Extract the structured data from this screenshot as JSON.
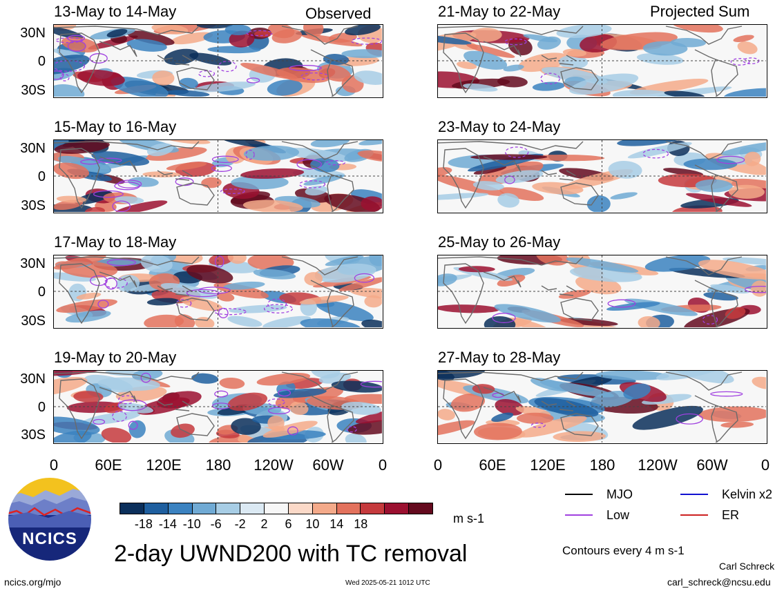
{
  "header": {
    "left_label": "Observed",
    "right_label": "Projected Sum"
  },
  "panels_left": [
    {
      "title": "13-May to 14-May"
    },
    {
      "title": "15-May to 16-May"
    },
    {
      "title": "17-May to 18-May"
    },
    {
      "title": "19-May to 20-May"
    }
  ],
  "panels_right": [
    {
      "title": "21-May to 22-May"
    },
    {
      "title": "23-May to 24-May"
    },
    {
      "title": "25-May to 26-May"
    },
    {
      "title": "27-May to 28-May"
    }
  ],
  "lat_labels": [
    "30N",
    "0",
    "30S"
  ],
  "lon_labels": [
    "0",
    "60E",
    "120E",
    "180",
    "120W",
    "60W",
    "0"
  ],
  "colorbar": {
    "ticks": [
      "-18",
      "-14",
      "-10",
      "-6",
      "-2",
      "2",
      "6",
      "10",
      "14",
      "18"
    ],
    "colors": [
      "#0b2f5b",
      "#1f5f9f",
      "#3b82c0",
      "#70aad4",
      "#a7cde5",
      "#dbe9f3",
      "#f7f7f7",
      "#fbd9c8",
      "#f4aa8a",
      "#e3725d",
      "#c53a3d",
      "#9b1030",
      "#640a1e"
    ],
    "units": "m s-1"
  },
  "legend": {
    "items": [
      {
        "label": "MJO",
        "color": "#000000"
      },
      {
        "label": "Kelvin x2",
        "color": "#1010d0"
      },
      {
        "label": "Low",
        "color": "#a040e0"
      },
      {
        "label": "ER",
        "color": "#cc2020"
      }
    ],
    "contours": "Contours every 4 m s-1"
  },
  "footer": {
    "logo_text": "NCICS",
    "main_title": "2-day UWND200 with TC removal",
    "url": "ncics.org/mjo",
    "timestamp": "Wed 2025-05-21 1012 UTC",
    "author": "Carl Schreck",
    "email": "carl_schreck@ncsu.edu"
  },
  "map_data": {
    "variable": "200-hPa zonal wind anomaly",
    "lat_range": [
      "40S",
      "40N"
    ],
    "lon_range": [
      "0",
      "360"
    ]
  }
}
